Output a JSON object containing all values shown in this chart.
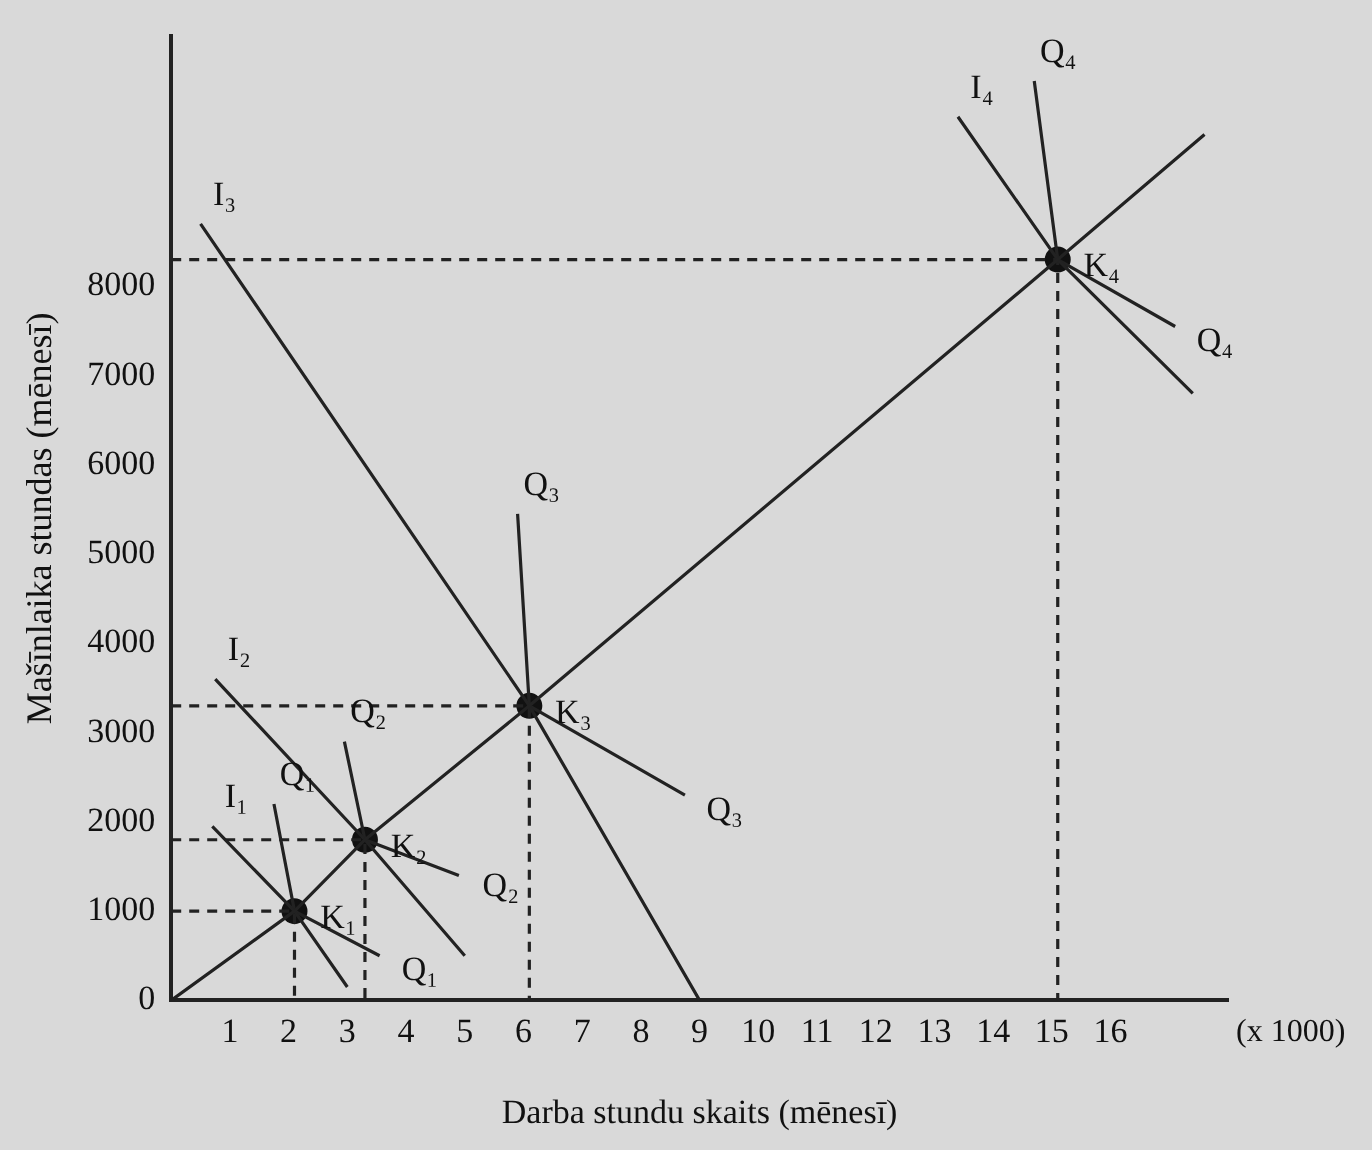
{
  "chart_data": {
    "type": "line",
    "xlabel": "Darba stundu skaits (mēnesī)",
    "ylabel": "Mašīnlaika stundas (mēnesī)",
    "xlim": [
      0,
      18
    ],
    "ylim": [
      0,
      10800
    ],
    "xticks": [
      1,
      2,
      3,
      4,
      5,
      6,
      7,
      8,
      9,
      10,
      11,
      12,
      13,
      14,
      15,
      16
    ],
    "yticks": [
      0,
      1000,
      2000,
      3000,
      4000,
      5000,
      6000,
      7000,
      8000
    ],
    "grid": false,
    "legend": false,
    "marker": "none",
    "line_style": "solid",
    "series": [
      {
        "color": "#222222",
        "x": [
          0,
          2.1,
          3.3,
          6.1,
          15.1,
          17.6
        ],
        "values": [
          0,
          1000,
          1800,
          3300,
          8300,
          9700
        ]
      },
      {
        "color": "#222222",
        "x": [
          0.7,
          2.1,
          3.0
        ],
        "values": [
          1950,
          1000,
          150
        ]
      },
      {
        "color": "#222222",
        "x": [
          0.75,
          3.3,
          5.0
        ],
        "values": [
          3600,
          1800,
          500
        ]
      },
      {
        "color": "#222222",
        "x": [
          0.5,
          6.1,
          9.0
        ],
        "values": [
          8700,
          3300,
          0
        ]
      },
      {
        "color": "#222222",
        "x": [
          13.4,
          15.1,
          17.4
        ],
        "values": [
          9900,
          8300,
          6800
        ]
      },
      {
        "color": "#222222",
        "x": [
          1.75,
          2.1,
          3.55
        ],
        "values": [
          2200,
          1000,
          500
        ]
      },
      {
        "color": "#222222",
        "x": [
          2.95,
          3.3,
          4.9
        ],
        "values": [
          2900,
          1800,
          1400
        ]
      },
      {
        "color": "#222222",
        "x": [
          5.9,
          6.1,
          8.75
        ],
        "values": [
          5450,
          3300,
          2300
        ]
      },
      {
        "color": "#222222",
        "x": [
          14.7,
          15.1,
          17.1
        ],
        "values": [
          10300,
          8300,
          7550
        ]
      },
      {
        "color": "#222222",
        "line_style": "dashed",
        "x": [
          0,
          2.1,
          2.1
        ],
        "values": [
          1000,
          1000,
          0
        ]
      },
      {
        "color": "#222222",
        "line_style": "dashed",
        "x": [
          0,
          3.3,
          3.3
        ],
        "values": [
          1800,
          1800,
          0
        ]
      },
      {
        "color": "#222222",
        "line_style": "dashed",
        "x": [
          0,
          6.1,
          6.1
        ],
        "values": [
          3300,
          3300,
          0
        ]
      },
      {
        "color": "#222222",
        "line_style": "dashed",
        "x": [
          0,
          15.1,
          15.1
        ],
        "values": [
          8300,
          8300,
          0
        ]
      },
      {
        "type": "scatter",
        "color": "#111111",
        "marker": "circle",
        "x": [
          2.1,
          3.3,
          6.1,
          15.1
        ],
        "values": [
          1000,
          1800,
          3300,
          8300
        ]
      }
    ],
    "annotations": [
      {
        "text": "I₁",
        "x": 0.7,
        "y": 1950
      },
      {
        "text": "I₂",
        "x": 0.75,
        "y": 3600
      },
      {
        "text": "I₃",
        "x": 0.5,
        "y": 8700
      },
      {
        "text": "I₄",
        "x": 13.4,
        "y": 9900
      },
      {
        "text": "Q₁",
        "x": 1.75,
        "y": 2200
      },
      {
        "text": "Q₁",
        "x": 3.55,
        "y": 500
      },
      {
        "text": "Q₂",
        "x": 2.95,
        "y": 2900
      },
      {
        "text": "Q₂",
        "x": 4.9,
        "y": 1400
      },
      {
        "text": "Q₃",
        "x": 5.9,
        "y": 5450
      },
      {
        "text": "Q₃",
        "x": 8.75,
        "y": 2300
      },
      {
        "text": "Q₄",
        "x": 14.7,
        "y": 10300
      },
      {
        "text": "Q₄",
        "x": 17.1,
        "y": 7550
      },
      {
        "text": "K₁",
        "x": 2.1,
        "y": 1000
      },
      {
        "text": "K₂",
        "x": 3.3,
        "y": 1800
      },
      {
        "text": "K₃",
        "x": 6.1,
        "y": 3300
      },
      {
        "text": "K₄",
        "x": 15.1,
        "y": 8300
      },
      "(x 1000)"
    ]
  }
}
